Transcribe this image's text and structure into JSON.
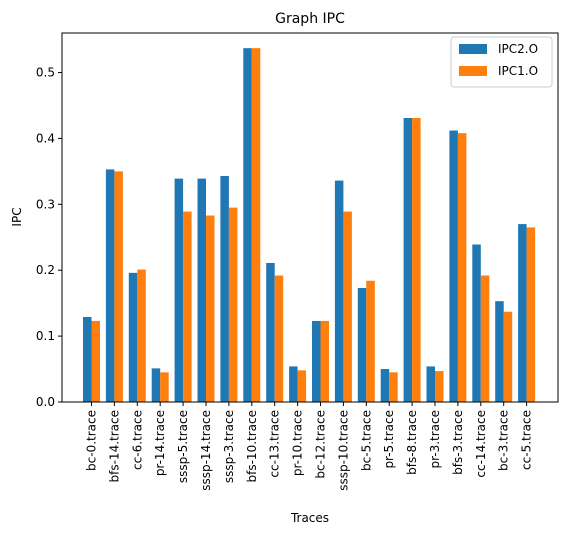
{
  "chart_data": {
    "type": "bar",
    "title": "Graph IPC",
    "xlabel": "Traces",
    "ylabel": "IPC",
    "ylim": [
      0,
      0.56
    ],
    "yticks": [
      0.0,
      0.1,
      0.2,
      0.3,
      0.4,
      0.5
    ],
    "ytick_labels": [
      "0.0",
      "0.1",
      "0.2",
      "0.3",
      "0.4",
      "0.5"
    ],
    "grid": false,
    "legend_position": "top-right",
    "categories": [
      "bc-0.trace",
      "bfs-14.trace",
      "cc-6.trace",
      "pr-14.trace",
      "sssp-5.trace",
      "sssp-14.trace",
      "sssp-3.trace",
      "bfs-10.trace",
      "cc-13.trace",
      "pr-10.trace",
      "bc-12.trace",
      "sssp-10.trace",
      "bc-5.trace",
      "pr-5.trace",
      "bfs-8.trace",
      "pr-3.trace",
      "bfs-3.trace",
      "cc-14.trace",
      "bc-3.trace",
      "cc-5.trace"
    ],
    "series": [
      {
        "name": "IPC2.O",
        "color": "#1f77b4",
        "values": [
          0.129,
          0.353,
          0.196,
          0.051,
          0.339,
          0.339,
          0.343,
          0.537,
          0.211,
          0.054,
          0.123,
          0.336,
          0.173,
          0.05,
          0.431,
          0.054,
          0.412,
          0.239,
          0.153,
          0.27
        ]
      },
      {
        "name": "IPC1.O",
        "color": "#ff7f0e",
        "values": [
          0.123,
          0.35,
          0.201,
          0.045,
          0.289,
          0.283,
          0.295,
          0.537,
          0.192,
          0.048,
          0.123,
          0.289,
          0.184,
          0.045,
          0.431,
          0.047,
          0.408,
          0.192,
          0.137,
          0.265
        ]
      }
    ]
  }
}
